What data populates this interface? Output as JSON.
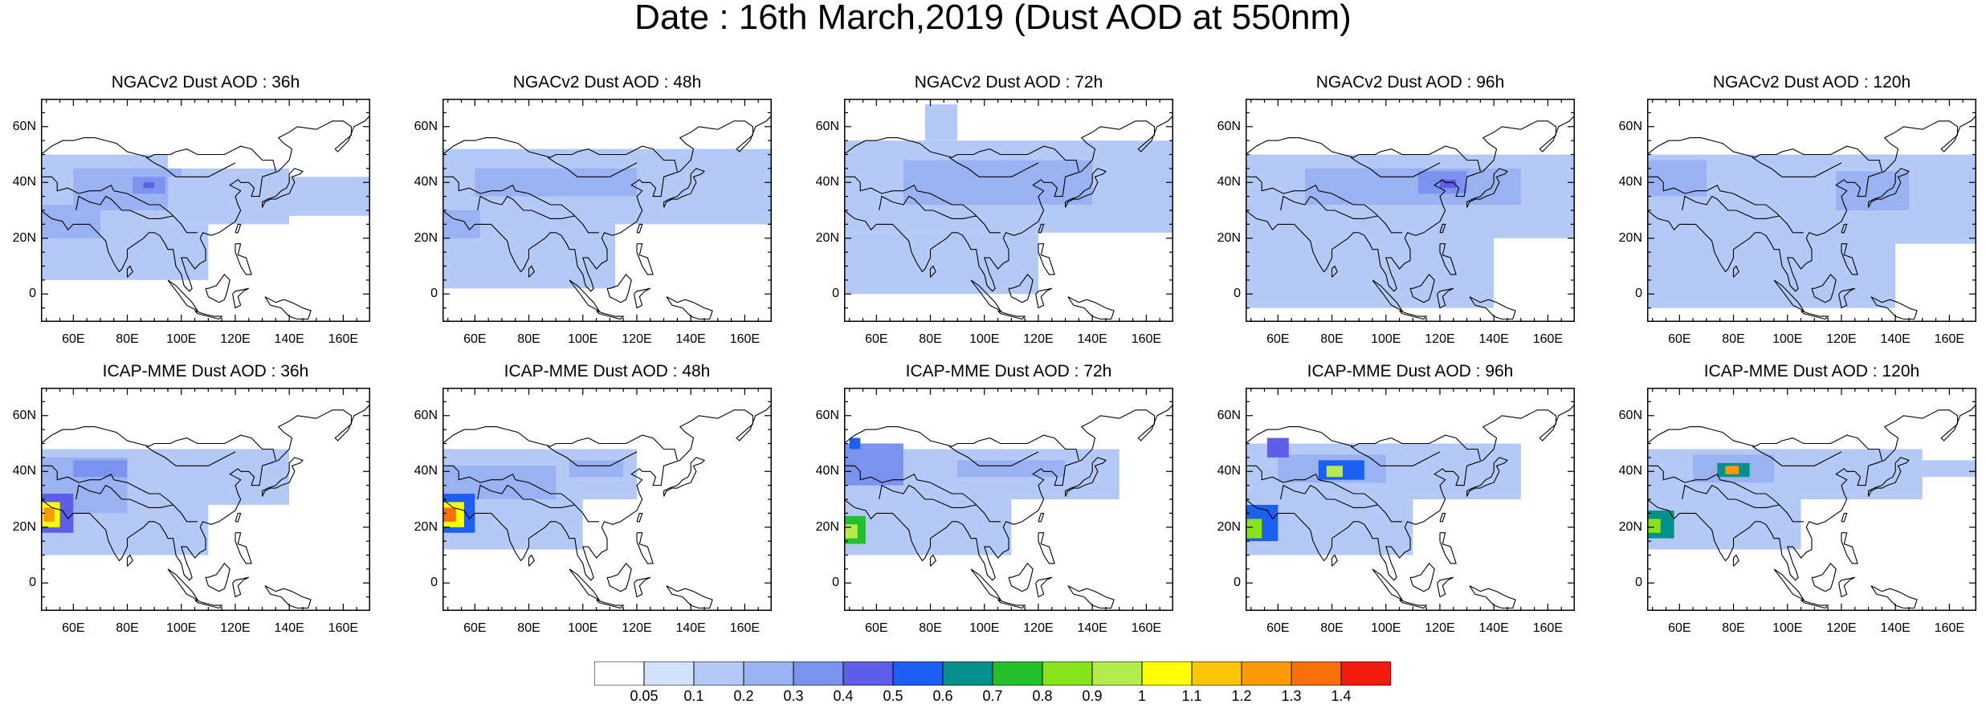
{
  "title": "Date : 16th March,2019 (Dust AOD at 550nm)",
  "chart_data": {
    "type": "heatmap",
    "variable": "Dust AOD at 550nm",
    "date": "16th March,2019",
    "lon_range": [
      48,
      170
    ],
    "lat_range": [
      -10,
      70
    ],
    "lat_ticks": [
      "60N",
      "40N",
      "20N",
      "0"
    ],
    "lon_ticks": [
      "60E",
      "80E",
      "100E",
      "120E",
      "140E",
      "160E"
    ],
    "colorbar": {
      "labels": [
        "0.05",
        "0.1",
        "0.2",
        "0.3",
        "0.4",
        "0.5",
        "0.6",
        "0.7",
        "0.8",
        "0.9",
        "1",
        "1.1",
        "1.2",
        "1.3",
        "1.4"
      ],
      "colors": [
        "#ffffff",
        "#d4e1fb",
        "#b5c9f7",
        "#9ab2f2",
        "#7b93ee",
        "#5e5ee8",
        "#1c5ff2",
        "#05908c",
        "#24c02b",
        "#86e31c",
        "#b4ec4d",
        "#ffff00",
        "#fbc405",
        "#fa9a06",
        "#f96f0a",
        "#f41a0e"
      ]
    },
    "panels": [
      {
        "model": "NGACv2",
        "title": "NGACv2 Dust AOD : 36h",
        "hours": 36,
        "row": 0,
        "col": 0
      },
      {
        "model": "NGACv2",
        "title": "NGACv2 Dust AOD : 48h",
        "hours": 48,
        "row": 0,
        "col": 1
      },
      {
        "model": "NGACv2",
        "title": "NGACv2 Dust AOD : 72h",
        "hours": 72,
        "row": 0,
        "col": 2
      },
      {
        "model": "NGACv2",
        "title": "NGACv2 Dust AOD : 96h",
        "hours": 96,
        "row": 0,
        "col": 3
      },
      {
        "model": "NGACv2",
        "title": "NGACv2 Dust AOD : 120h",
        "hours": 120,
        "row": 0,
        "col": 4
      },
      {
        "model": "ICAP-MME",
        "title": "ICAP-MME Dust AOD : 36h",
        "hours": 36,
        "row": 1,
        "col": 0
      },
      {
        "model": "ICAP-MME",
        "title": "ICAP-MME Dust AOD : 48h",
        "hours": 48,
        "row": 1,
        "col": 1
      },
      {
        "model": "ICAP-MME",
        "title": "ICAP-MME Dust AOD : 72h",
        "hours": 72,
        "row": 1,
        "col": 2
      },
      {
        "model": "ICAP-MME",
        "title": "ICAP-MME Dust AOD : 96h",
        "hours": 96,
        "row": 1,
        "col": 3
      },
      {
        "model": "ICAP-MME",
        "title": "ICAP-MME Dust AOD : 120h",
        "hours": 120,
        "row": 1,
        "col": 4
      }
    ],
    "fields": [
      [
        {
          "lon": [
            48,
            95
          ],
          "lat": [
            15,
            50
          ],
          "v": 0.15
        },
        {
          "lon": [
            48,
            140
          ],
          "lat": [
            25,
            45
          ],
          "v": 0.12
        },
        {
          "lon": [
            48,
            110
          ],
          "lat": [
            5,
            25
          ],
          "v": 0.12
        },
        {
          "lon": [
            60,
            100
          ],
          "lat": [
            30,
            45
          ],
          "v": 0.2
        },
        {
          "lon": [
            82,
            94
          ],
          "lat": [
            36,
            42
          ],
          "v": 0.35
        },
        {
          "lon": [
            86,
            90
          ],
          "lat": [
            38,
            40
          ],
          "v": 0.45
        },
        {
          "lon": [
            48,
            70
          ],
          "lat": [
            20,
            32
          ],
          "v": 0.25
        },
        {
          "lon": [
            95,
            170
          ],
          "lat": [
            28,
            42
          ],
          "v": 0.1
        }
      ],
      [
        {
          "lon": [
            48,
            170
          ],
          "lat": [
            25,
            52
          ],
          "v": 0.15
        },
        {
          "lon": [
            48,
            112
          ],
          "lat": [
            2,
            27
          ],
          "v": 0.12
        },
        {
          "lon": [
            60,
            120
          ],
          "lat": [
            35,
            45
          ],
          "v": 0.2
        },
        {
          "lon": [
            48,
            62
          ],
          "lat": [
            20,
            30
          ],
          "v": 0.25
        },
        {
          "lon": [
            82,
            100
          ],
          "lat": [
            37,
            42
          ],
          "v": 0.25
        }
      ],
      [
        {
          "lon": [
            48,
            170
          ],
          "lat": [
            22,
            55
          ],
          "v": 0.15
        },
        {
          "lon": [
            48,
            120
          ],
          "lat": [
            0,
            22
          ],
          "v": 0.12
        },
        {
          "lon": [
            70,
            140
          ],
          "lat": [
            32,
            48
          ],
          "v": 0.2
        },
        {
          "lon": [
            90,
            130
          ],
          "lat": [
            35,
            45
          ],
          "v": 0.25
        },
        {
          "lon": [
            78,
            90
          ],
          "lat": [
            55,
            68
          ],
          "v": 0.1
        }
      ],
      [
        {
          "lon": [
            48,
            170
          ],
          "lat": [
            20,
            50
          ],
          "v": 0.15
        },
        {
          "lon": [
            48,
            140
          ],
          "lat": [
            -5,
            22
          ],
          "v": 0.12
        },
        {
          "lon": [
            70,
            150
          ],
          "lat": [
            32,
            45
          ],
          "v": 0.2
        },
        {
          "lon": [
            112,
            130
          ],
          "lat": [
            36,
            44
          ],
          "v": 0.3
        },
        {
          "lon": [
            120,
            126
          ],
          "lat": [
            38,
            41
          ],
          "v": 0.4
        }
      ],
      [
        {
          "lon": [
            48,
            170
          ],
          "lat": [
            20,
            50
          ],
          "v": 0.15
        },
        {
          "lon": [
            48,
            140
          ],
          "lat": [
            -5,
            22
          ],
          "v": 0.12
        },
        {
          "lon": [
            140,
            170
          ],
          "lat": [
            18,
            48
          ],
          "v": 0.15
        },
        {
          "lon": [
            118,
            145
          ],
          "lat": [
            30,
            44
          ],
          "v": 0.2
        },
        {
          "lon": [
            48,
            70
          ],
          "lat": [
            35,
            48
          ],
          "v": 0.2
        }
      ],
      [
        {
          "lon": [
            48,
            140
          ],
          "lat": [
            28,
            48
          ],
          "v": 0.12
        },
        {
          "lon": [
            48,
            110
          ],
          "lat": [
            10,
            30
          ],
          "v": 0.12
        },
        {
          "lon": [
            48,
            80
          ],
          "lat": [
            25,
            45
          ],
          "v": 0.2
        },
        {
          "lon": [
            48,
            60
          ],
          "lat": [
            18,
            32
          ],
          "v": 0.4
        },
        {
          "lon": [
            48,
            55
          ],
          "lat": [
            20,
            29
          ],
          "v": 1.0
        },
        {
          "lon": [
            49,
            53
          ],
          "lat": [
            22,
            27
          ],
          "v": 1.25
        },
        {
          "lon": [
            60,
            80
          ],
          "lat": [
            38,
            44
          ],
          "v": 0.3
        }
      ],
      [
        {
          "lon": [
            48,
            120
          ],
          "lat": [
            30,
            48
          ],
          "v": 0.15
        },
        {
          "lon": [
            48,
            100
          ],
          "lat": [
            12,
            30
          ],
          "v": 0.12
        },
        {
          "lon": [
            48,
            90
          ],
          "lat": [
            30,
            42
          ],
          "v": 0.2
        },
        {
          "lon": [
            48,
            60
          ],
          "lat": [
            18,
            32
          ],
          "v": 0.5
        },
        {
          "lon": [
            48,
            56
          ],
          "lat": [
            20,
            29
          ],
          "v": 1.0
        },
        {
          "lon": [
            48,
            53
          ],
          "lat": [
            22,
            27
          ],
          "v": 1.3
        },
        {
          "lon": [
            95,
            115
          ],
          "lat": [
            38,
            44
          ],
          "v": 0.25
        }
      ],
      [
        {
          "lon": [
            48,
            150
          ],
          "lat": [
            30,
            48
          ],
          "v": 0.15
        },
        {
          "lon": [
            48,
            110
          ],
          "lat": [
            10,
            30
          ],
          "v": 0.12
        },
        {
          "lon": [
            48,
            70
          ],
          "lat": [
            35,
            50
          ],
          "v": 0.3
        },
        {
          "lon": [
            48,
            56
          ],
          "lat": [
            14,
            24
          ],
          "v": 0.7
        },
        {
          "lon": [
            48,
            53
          ],
          "lat": [
            16,
            21
          ],
          "v": 0.9
        },
        {
          "lon": [
            50,
            54
          ],
          "lat": [
            48,
            52
          ],
          "v": 0.5
        },
        {
          "lon": [
            90,
            130
          ],
          "lat": [
            38,
            44
          ],
          "v": 0.25
        }
      ],
      [
        {
          "lon": [
            48,
            150
          ],
          "lat": [
            30,
            50
          ],
          "v": 0.15
        },
        {
          "lon": [
            48,
            110
          ],
          "lat": [
            10,
            30
          ],
          "v": 0.12
        },
        {
          "lon": [
            60,
            100
          ],
          "lat": [
            36,
            46
          ],
          "v": 0.25
        },
        {
          "lon": [
            75,
            92
          ],
          "lat": [
            37,
            44
          ],
          "v": 0.5
        },
        {
          "lon": [
            78,
            84
          ],
          "lat": [
            38,
            42
          ],
          "v": 0.9
        },
        {
          "lon": [
            48,
            60
          ],
          "lat": [
            15,
            28
          ],
          "v": 0.5
        },
        {
          "lon": [
            48,
            54
          ],
          "lat": [
            16,
            23
          ],
          "v": 0.8
        },
        {
          "lon": [
            56,
            64
          ],
          "lat": [
            45,
            52
          ],
          "v": 0.4
        }
      ],
      [
        {
          "lon": [
            48,
            150
          ],
          "lat": [
            30,
            48
          ],
          "v": 0.15
        },
        {
          "lon": [
            48,
            105
          ],
          "lat": [
            12,
            30
          ],
          "v": 0.12
        },
        {
          "lon": [
            65,
            95
          ],
          "lat": [
            36,
            46
          ],
          "v": 0.25
        },
        {
          "lon": [
            74,
            86
          ],
          "lat": [
            38,
            43
          ],
          "v": 0.6
        },
        {
          "lon": [
            77,
            82
          ],
          "lat": [
            39,
            42
          ],
          "v": 1.2
        },
        {
          "lon": [
            48,
            58
          ],
          "lat": [
            16,
            26
          ],
          "v": 0.6
        },
        {
          "lon": [
            48,
            53
          ],
          "lat": [
            18,
            23
          ],
          "v": 0.8
        },
        {
          "lon": [
            150,
            170
          ],
          "lat": [
            38,
            44
          ],
          "v": 0.12
        }
      ]
    ]
  }
}
